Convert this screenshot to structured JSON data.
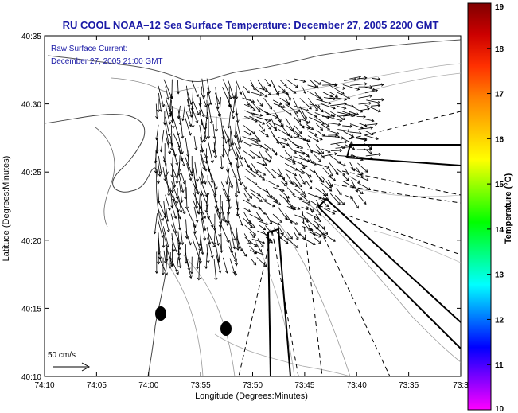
{
  "chart_data": {
    "type": "vector-field",
    "title": "RU COOL   NOAA–12  Sea Surface Temperature:  December 27, 2005 2200 GMT",
    "inset_label": [
      "Raw Surface Current:",
      "December 27, 2005 21:00 GMT"
    ],
    "xlabel": "Longitude (Degrees:Minutes)",
    "ylabel": "Latitude (Degrees:Minutes)",
    "x_ticks": [
      "74:10",
      "74:05",
      "74:00",
      "73:55",
      "73:50",
      "73:45",
      "73:40",
      "73:35",
      "73:3"
    ],
    "y_ticks": [
      "40:35",
      "40:30",
      "40:25",
      "40:20",
      "40:15",
      "40:10"
    ],
    "xlim": [
      "74:10",
      "73:30"
    ],
    "ylim": [
      "40:10",
      "40:35"
    ],
    "scale_label": "50 cm/s",
    "colorbar": {
      "label": "Temperature (°C)",
      "ticks": [
        "19",
        "18",
        "17",
        "16",
        "15",
        "14",
        "13",
        "12",
        "11",
        "10"
      ],
      "range": [
        10,
        19
      ],
      "colors": [
        "#ff00ff",
        "#8000ff",
        "#0000ff",
        "#0080ff",
        "#00ffff",
        "#00ff80",
        "#00ff00",
        "#80ff00",
        "#ffff00",
        "#ffc000",
        "#ff8000",
        "#ff3000",
        "#cc0000",
        "#800000"
      ]
    },
    "grid": false
  }
}
